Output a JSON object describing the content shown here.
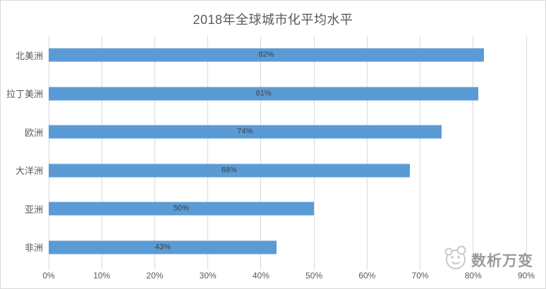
{
  "chart_data": {
    "type": "bar",
    "orientation": "horizontal",
    "title": "2018年全球城市化平均水平",
    "categories": [
      "北美洲",
      "拉丁美洲",
      "欧洲",
      "大洋洲",
      "亚洲",
      "非洲"
    ],
    "values": [
      82,
      81,
      74,
      68,
      50,
      43
    ],
    "data_labels": [
      "82%",
      "81%",
      "74%",
      "68%",
      "50%",
      "43%"
    ],
    "x_ticks": [
      "0%",
      "10%",
      "20%",
      "30%",
      "40%",
      "50%",
      "60%",
      "70%",
      "80%",
      "90%"
    ],
    "xlim": [
      0,
      90
    ],
    "xlabel": "",
    "ylabel": "",
    "grid": "vertical",
    "legend": "none",
    "data_label_position": "center",
    "bar_color": "#5b9bd5",
    "gridline_color": "#d9d9d9",
    "axis_text_color": "#595959",
    "data_label_color": "#3f3f3f"
  },
  "watermark": {
    "text": "数析万变",
    "icon": "mascot-face-icon",
    "color": "#9a9a9a"
  }
}
